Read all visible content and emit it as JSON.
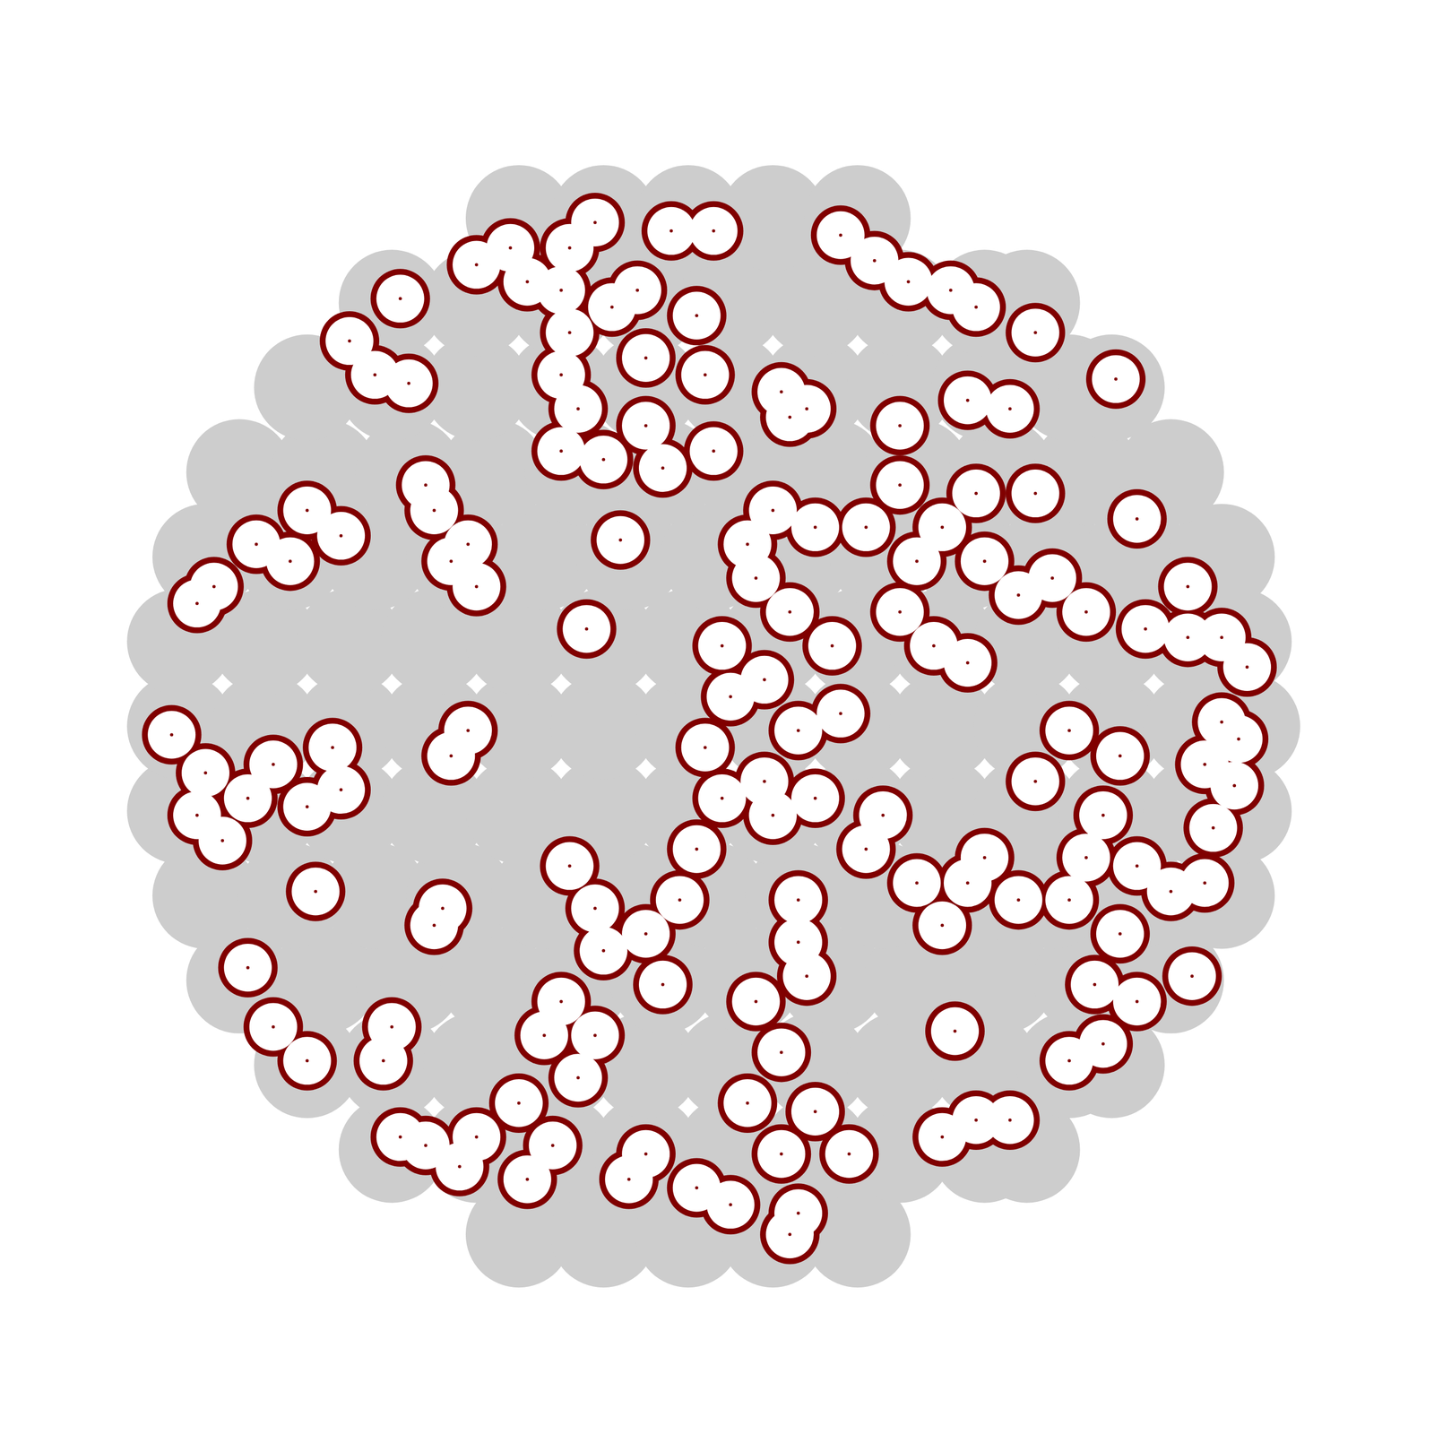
{
  "chart_data": {
    "type": "scatter",
    "xlim": [
      0,
      1568
    ],
    "ylim": [
      0,
      1568
    ],
    "tick_labels": false,
    "grid": false,
    "series": [
      {
        "color": "#cdcdcd",
        "marker": "circle",
        "values": [
          [
            550,
            173
          ],
          [
            650,
            173
          ],
          [
            750,
            173
          ],
          [
            850,
            173
          ],
          [
            950,
            173
          ],
          [
            400,
            273
          ],
          [
            500,
            273
          ],
          [
            600,
            273
          ],
          [
            700,
            273
          ],
          [
            800,
            273
          ],
          [
            900,
            273
          ],
          [
            1000,
            273
          ],
          [
            1100,
            273
          ],
          [
            1150,
            273
          ],
          [
            300,
            373
          ],
          [
            400,
            373
          ],
          [
            500,
            373
          ],
          [
            600,
            373
          ],
          [
            700,
            373
          ],
          [
            800,
            373
          ],
          [
            900,
            373
          ],
          [
            1000,
            373
          ],
          [
            1100,
            373
          ],
          [
            1200,
            373
          ],
          [
            1250,
            373
          ],
          [
            220,
            473
          ],
          [
            320,
            473
          ],
          [
            420,
            473
          ],
          [
            520,
            473
          ],
          [
            620,
            473
          ],
          [
            720,
            473
          ],
          [
            820,
            473
          ],
          [
            920,
            473
          ],
          [
            1020,
            473
          ],
          [
            1120,
            473
          ],
          [
            1220,
            473
          ],
          [
            1320,
            473
          ],
          [
            180,
            573
          ],
          [
            280,
            573
          ],
          [
            380,
            573
          ],
          [
            480,
            573
          ],
          [
            580,
            573
          ],
          [
            680,
            573
          ],
          [
            780,
            573
          ],
          [
            880,
            573
          ],
          [
            980,
            573
          ],
          [
            1080,
            573
          ],
          [
            1180,
            573
          ],
          [
            1280,
            573
          ],
          [
            1380,
            573
          ],
          [
            150,
            673
          ],
          [
            250,
            673
          ],
          [
            350,
            673
          ],
          [
            450,
            673
          ],
          [
            550,
            673
          ],
          [
            650,
            673
          ],
          [
            750,
            673
          ],
          [
            850,
            673
          ],
          [
            950,
            673
          ],
          [
            1050,
            673
          ],
          [
            1150,
            673
          ],
          [
            1250,
            673
          ],
          [
            1350,
            673
          ],
          [
            1400,
            673
          ],
          [
            150,
            773
          ],
          [
            250,
            773
          ],
          [
            350,
            773
          ],
          [
            450,
            773
          ],
          [
            550,
            773
          ],
          [
            650,
            773
          ],
          [
            750,
            773
          ],
          [
            850,
            773
          ],
          [
            950,
            773
          ],
          [
            1050,
            773
          ],
          [
            1150,
            773
          ],
          [
            1250,
            773
          ],
          [
            1350,
            773
          ],
          [
            1410,
            773
          ],
          [
            150,
            873
          ],
          [
            250,
            873
          ],
          [
            350,
            873
          ],
          [
            450,
            873
          ],
          [
            550,
            873
          ],
          [
            650,
            873
          ],
          [
            750,
            873
          ],
          [
            850,
            873
          ],
          [
            950,
            873
          ],
          [
            1050,
            873
          ],
          [
            1150,
            873
          ],
          [
            1250,
            873
          ],
          [
            1350,
            873
          ],
          [
            1400,
            873
          ],
          [
            180,
            973
          ],
          [
            280,
            973
          ],
          [
            380,
            973
          ],
          [
            480,
            973
          ],
          [
            580,
            973
          ],
          [
            680,
            973
          ],
          [
            780,
            973
          ],
          [
            880,
            973
          ],
          [
            980,
            973
          ],
          [
            1080,
            973
          ],
          [
            1180,
            973
          ],
          [
            1280,
            973
          ],
          [
            1380,
            973
          ],
          [
            220,
            1073
          ],
          [
            320,
            1073
          ],
          [
            420,
            1073
          ],
          [
            520,
            1073
          ],
          [
            620,
            1073
          ],
          [
            720,
            1073
          ],
          [
            820,
            1073
          ],
          [
            920,
            1073
          ],
          [
            1020,
            1073
          ],
          [
            1120,
            1073
          ],
          [
            1220,
            1073
          ],
          [
            1320,
            1073
          ],
          [
            300,
            1173
          ],
          [
            400,
            1173
          ],
          [
            500,
            1173
          ],
          [
            600,
            1173
          ],
          [
            700,
            1173
          ],
          [
            800,
            1173
          ],
          [
            900,
            1173
          ],
          [
            1000,
            1173
          ],
          [
            1100,
            1173
          ],
          [
            1200,
            1173
          ],
          [
            1250,
            1173
          ],
          [
            400,
            1273
          ],
          [
            500,
            1273
          ],
          [
            600,
            1273
          ],
          [
            700,
            1273
          ],
          [
            800,
            1273
          ],
          [
            900,
            1273
          ],
          [
            1000,
            1273
          ],
          [
            1100,
            1273
          ],
          [
            1150,
            1273
          ],
          [
            550,
            1373
          ],
          [
            650,
            1373
          ],
          [
            750,
            1373
          ],
          [
            850,
            1373
          ],
          [
            950,
            1373
          ]
        ]
      },
      {
        "color": "#800000",
        "marker": "circle",
        "values": [
          [
            610,
            1338
          ],
          [
            690,
            1288
          ],
          [
            760,
            1258
          ],
          [
            610,
            1238
          ],
          [
            700,
            1208
          ],
          [
            770,
            1188
          ],
          [
            620,
            1148
          ],
          [
            700,
            1128
          ],
          [
            780,
            1098
          ],
          [
            650,
            1088
          ],
          [
            720,
            1078
          ],
          [
            600,
            1288
          ],
          [
            730,
            1358
          ],
          [
            780,
            1358
          ],
          [
            640,
            1368
          ],
          [
            560,
            1298
          ],
          [
            500,
            1318
          ],
          [
            540,
            1338
          ],
          [
            660,
            1268
          ],
          [
            600,
            1188
          ],
          [
            600,
            1098
          ],
          [
            860,
            1168
          ],
          [
            890,
            1148
          ],
          [
            870,
            1138
          ],
          [
            450,
            1028
          ],
          [
            470,
            968
          ],
          [
            500,
            938
          ],
          [
            490,
            988
          ],
          [
            440,
            1058
          ],
          [
            850,
            1028
          ],
          [
            900,
            1008
          ],
          [
            960,
            1008
          ],
          [
            830,
            948
          ],
          [
            870,
            908
          ],
          [
            790,
            868
          ],
          [
            800,
            808
          ],
          [
            770,
            748
          ],
          [
            790,
            688
          ],
          [
            850,
            668
          ],
          [
            900,
            688
          ],
          [
            880,
            768
          ],
          [
            840,
            708
          ],
          [
            760,
            628
          ],
          [
            920,
            868
          ],
          [
            930,
            788
          ],
          [
            820,
            988
          ],
          [
            840,
            828
          ],
          [
            1020,
            968
          ],
          [
            1000,
            908
          ],
          [
            1040,
            868
          ],
          [
            1080,
            848
          ],
          [
            1140,
            928
          ],
          [
            1100,
            968
          ],
          [
            1180,
            948
          ],
          [
            1220,
            908
          ],
          [
            1050,
            1008
          ],
          [
            1280,
            1018
          ],
          [
            1290,
            888
          ],
          [
            1340,
            878
          ],
          [
            1380,
            878
          ],
          [
            180,
            718
          ],
          [
            230,
            688
          ],
          [
            200,
            638
          ],
          [
            260,
            728
          ],
          [
            330,
            748
          ],
          [
            340,
            698
          ],
          [
            300,
            678
          ],
          [
            170,
            668
          ],
          [
            470,
            738
          ],
          [
            490,
            768
          ],
          [
            1200,
            768
          ],
          [
            1260,
            738
          ],
          [
            1160,
            708
          ],
          [
            1240,
            668
          ],
          [
            1220,
            618
          ],
          [
            1280,
            608
          ],
          [
            1320,
            578
          ],
          [
            1360,
            588
          ],
          [
            1200,
            568
          ],
          [
            1260,
            528
          ],
          [
            1230,
            468
          ],
          [
            1280,
            448
          ],
          [
            1240,
            398
          ],
          [
            1200,
            378
          ],
          [
            1080,
            588
          ],
          [
            1020,
            588
          ],
          [
            1050,
            538
          ],
          [
            960,
            628
          ],
          [
            980,
            668
          ],
          [
            1100,
            618
          ],
          [
            1140,
            568
          ],
          [
            830,
            448
          ],
          [
            860,
            388
          ],
          [
            820,
            328
          ],
          [
            860,
            268
          ],
          [
            800,
            208
          ],
          [
            880,
            198
          ],
          [
            900,
            318
          ],
          [
            940,
            268
          ],
          [
            760,
            228
          ],
          [
            700,
            268
          ],
          [
            680,
            238
          ],
          [
            880,
            568
          ],
          [
            880,
            518
          ],
          [
            890,
            478
          ],
          [
            610,
            608
          ],
          [
            640,
            558
          ],
          [
            650,
            508
          ],
          [
            700,
            528
          ],
          [
            720,
            468
          ],
          [
            600,
            448
          ],
          [
            580,
            408
          ],
          [
            640,
            408
          ],
          [
            550,
            328
          ],
          [
            590,
            278
          ],
          [
            560,
            238
          ],
          [
            500,
            288
          ],
          [
            440,
            278
          ],
          [
            410,
            288
          ],
          [
            620,
            358
          ],
          [
            740,
            568
          ],
          [
            1090,
            308
          ],
          [
            1130,
            308
          ],
          [
            1050,
            288
          ],
          [
            170,
            918
          ],
          [
            190,
            938
          ],
          [
            240,
            988
          ],
          [
            280,
            968
          ],
          [
            340,
            998
          ],
          [
            300,
            1028
          ],
          [
            380,
            1188
          ],
          [
            420,
            1178
          ],
          [
            350,
            1228
          ],
          [
            410,
            1278
          ],
          [
            400,
            418
          ],
          [
            390,
            378
          ],
          [
            300,
            378
          ],
          [
            460,
            558
          ],
          [
            450,
            538
          ],
          [
            310,
            578
          ],
          [
            230,
            488
          ],
          [
            260,
            418
          ],
          [
            1010,
            1298
          ],
          [
            1060,
            1288
          ],
          [
            1090,
            1268
          ],
          [
            1080,
            1158
          ],
          [
            1130,
            1148
          ],
          [
            1160,
            1238
          ],
          [
            1000,
            1058
          ],
          [
            1090,
            1048
          ],
          [
            1160,
            1048
          ],
          [
            140,
            763
          ],
          [
            1255,
            1183
          ],
          [
            1410,
            843
          ],
          [
            1395,
            703
          ],
          [
            1370,
            653
          ],
          [
            1345,
            478
          ],
          [
            870,
            173
          ],
          [
            480,
            253
          ],
          [
            630,
            888
          ],
          [
            670,
            993
          ],
          [
            1000,
            1128
          ],
          [
            930,
            1353
          ],
          [
            970,
            1323
          ],
          [
            1065,
            413
          ],
          [
            1340,
            938
          ],
          [
            1400,
            758
          ],
          [
            1380,
            778
          ],
          [
            1360,
            728
          ]
        ]
      }
    ],
    "legend": false
  }
}
